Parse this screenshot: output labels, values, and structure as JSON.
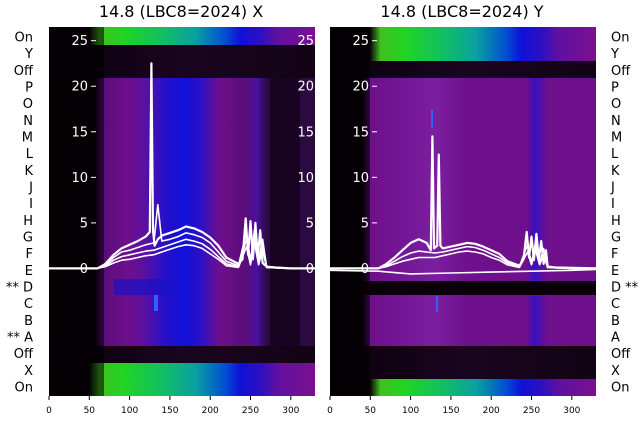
{
  "row_labels": [
    "On",
    "Y",
    "Off",
    "P",
    "O",
    "N",
    "M",
    "L",
    "K",
    "J",
    "I",
    "H",
    "G",
    "F",
    "E",
    "D",
    "C",
    "B",
    "A",
    "Off",
    "X",
    "On"
  ],
  "left_row_markers": {
    "D": "**",
    "A": "**"
  },
  "right_row_markers": {
    "D": "**"
  },
  "colors": {
    "background": "#0a000a",
    "band_purple": "#6e0f8c",
    "band_purple_light": "#8a1fb0",
    "blue": "#1010d8",
    "green": "#22d422",
    "teal": "#0aa0a0",
    "trace": "#ffffff"
  },
  "chart_data": [
    {
      "type": "line",
      "title": "14.8 (LBC8=2024) X",
      "xlim": [
        0,
        330
      ],
      "xticks": [
        0,
        50,
        100,
        150,
        200,
        250,
        300
      ],
      "ylim": [
        -14,
        26.5
      ],
      "yticks": [
        0,
        5,
        10,
        15,
        20,
        25
      ],
      "grid": false,
      "series": [
        {
          "x": [
            0,
            60,
            70,
            80,
            90,
            100,
            110,
            120,
            125,
            127,
            129,
            131,
            135,
            140,
            150,
            160,
            170,
            180,
            190,
            200,
            210,
            220,
            235,
            240,
            244,
            247,
            250,
            253,
            256,
            259,
            262,
            265,
            270,
            280,
            300,
            330
          ],
          "y": [
            0,
            0,
            0.5,
            1.5,
            2.2,
            2.6,
            3.0,
            3.5,
            4.0,
            22.5,
            4.2,
            2.5,
            3.2,
            3.6,
            3.9,
            4.2,
            4.6,
            4.4,
            4.0,
            3.4,
            2.5,
            1.2,
            0.5,
            1.0,
            5.5,
            1.5,
            5.2,
            1.0,
            5.0,
            1.2,
            4.2,
            0.6,
            0.2,
            0.1,
            0,
            0
          ]
        },
        {
          "x": [
            0,
            60,
            70,
            80,
            90,
            100,
            110,
            120,
            130,
            135,
            140,
            150,
            160,
            170,
            180,
            190,
            200,
            210,
            220,
            235,
            245,
            250,
            255,
            260,
            265,
            270,
            300,
            330
          ],
          "y": [
            0,
            0,
            0.4,
            1.2,
            1.8,
            2.0,
            2.3,
            2.6,
            2.8,
            7.0,
            3.0,
            3.2,
            3.5,
            3.9,
            3.7,
            3.4,
            2.8,
            1.8,
            0.8,
            0.3,
            4.0,
            0.8,
            4.2,
            0.8,
            3.2,
            0.2,
            0,
            0
          ]
        },
        {
          "x": [
            0,
            60,
            70,
            80,
            90,
            100,
            110,
            120,
            130,
            140,
            150,
            160,
            170,
            180,
            190,
            200,
            210,
            220,
            235,
            245,
            250,
            255,
            260,
            265,
            270,
            300,
            330
          ],
          "y": [
            0,
            0,
            0.3,
            0.9,
            1.3,
            1.5,
            1.7,
            1.9,
            2.0,
            2.3,
            2.6,
            2.9,
            3.2,
            3.0,
            2.7,
            2.1,
            1.3,
            0.5,
            0.2,
            3.2,
            0.6,
            3.5,
            0.6,
            2.6,
            0.1,
            0,
            0
          ]
        },
        {
          "x": [
            0,
            60,
            70,
            80,
            90,
            100,
            110,
            120,
            130,
            140,
            150,
            160,
            170,
            180,
            190,
            200,
            210,
            220,
            235,
            245,
            250,
            255,
            260,
            265,
            270,
            300,
            330
          ],
          "y": [
            0,
            0,
            0.2,
            0.6,
            0.9,
            1.0,
            1.2,
            1.4,
            1.5,
            1.8,
            2.1,
            2.4,
            2.6,
            2.5,
            2.2,
            1.6,
            1.0,
            0.3,
            0.1,
            2.4,
            0.4,
            2.8,
            0.4,
            2.0,
            0.1,
            0,
            0
          ]
        }
      ]
    },
    {
      "type": "line",
      "title": "14.8 (LBC8=2024) Y",
      "xlim": [
        0,
        330
      ],
      "xticks": [
        0,
        50,
        100,
        150,
        200,
        250,
        300
      ],
      "ylim": [
        -14,
        26.5
      ],
      "yticks": [
        0,
        5,
        10,
        15,
        20,
        25
      ],
      "grid": false,
      "series": [
        {
          "x": [
            0,
            60,
            70,
            80,
            90,
            100,
            110,
            120,
            125,
            127,
            129,
            133,
            135,
            137,
            140,
            150,
            160,
            170,
            180,
            190,
            200,
            210,
            220,
            235,
            240,
            244,
            247,
            250,
            253,
            256,
            259,
            262,
            265,
            268,
            270,
            280,
            330
          ],
          "y": [
            0,
            0,
            0.5,
            1.2,
            2.0,
            2.8,
            3.2,
            2.8,
            2.0,
            14.5,
            2.2,
            2.5,
            12.5,
            2.5,
            2.2,
            2.4,
            2.6,
            2.8,
            2.7,
            2.4,
            2.0,
            1.6,
            0.8,
            0.3,
            1.0,
            4.0,
            1.2,
            3.5,
            0.9,
            3.8,
            1.0,
            3.0,
            0.5,
            2.0,
            0.2,
            0.1,
            0
          ]
        },
        {
          "x": [
            0,
            60,
            70,
            80,
            90,
            100,
            110,
            120,
            130,
            140,
            150,
            160,
            170,
            180,
            190,
            200,
            210,
            220,
            235,
            245,
            250,
            255,
            260,
            265,
            270,
            300,
            330
          ],
          "y": [
            0,
            0,
            0.3,
            0.8,
            1.3,
            1.7,
            1.9,
            1.8,
            1.7,
            1.8,
            2.0,
            2.2,
            2.4,
            2.3,
            2.0,
            1.6,
            1.2,
            0.6,
            0.2,
            2.6,
            0.6,
            2.8,
            0.6,
            2.2,
            0.1,
            0,
            0
          ]
        },
        {
          "x": [
            0,
            60,
            70,
            80,
            90,
            100,
            110,
            120,
            130,
            140,
            150,
            160,
            170,
            180,
            190,
            200,
            210,
            220,
            235,
            245,
            250,
            255,
            260,
            265,
            270,
            300,
            330
          ],
          "y": [
            0,
            0,
            0.2,
            0.5,
            0.8,
            1.0,
            1.2,
            1.2,
            1.2,
            1.4,
            1.6,
            1.8,
            1.9,
            1.8,
            1.6,
            1.2,
            0.9,
            0.4,
            0.1,
            1.8,
            0.4,
            2.0,
            0.4,
            1.5,
            0.1,
            0,
            0
          ]
        },
        {
          "x": [
            0,
            60,
            100,
            150,
            200,
            250,
            300,
            330
          ],
          "y": [
            -0.2,
            -0.3,
            -0.6,
            -0.5,
            -0.4,
            -0.3,
            -0.2,
            -0.1
          ]
        }
      ]
    }
  ]
}
